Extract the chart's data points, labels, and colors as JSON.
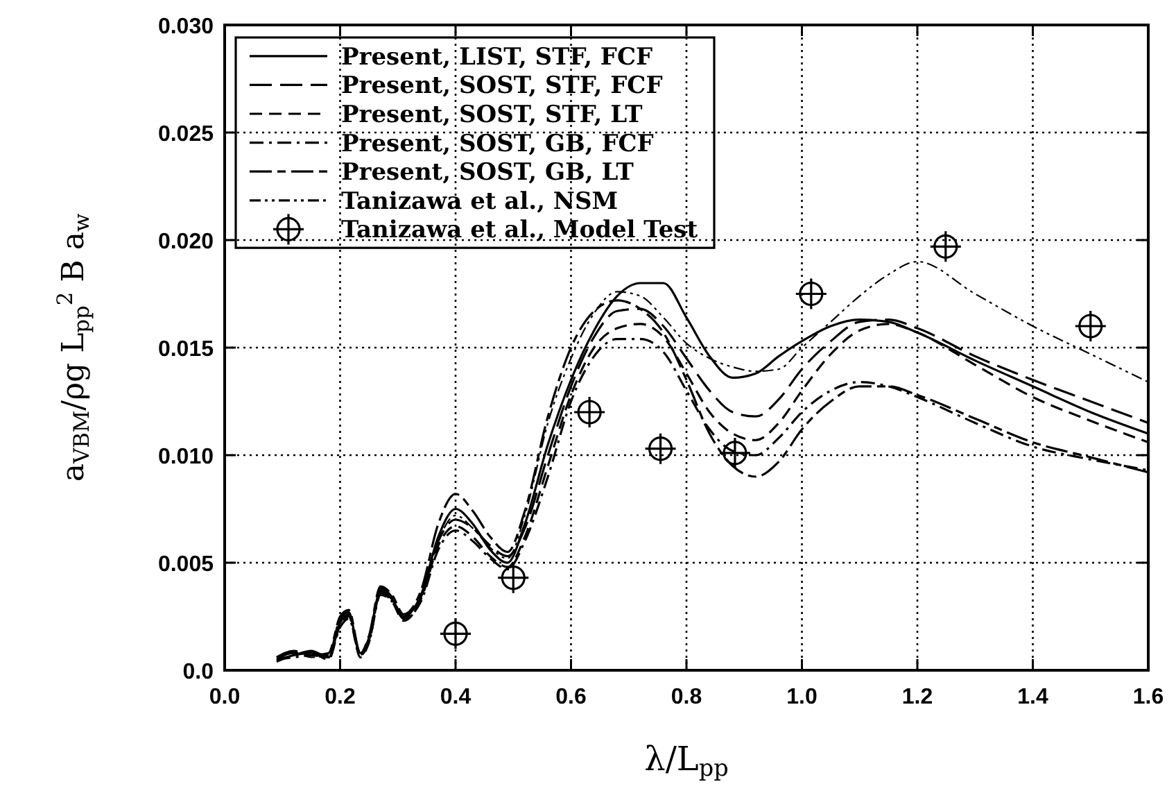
{
  "chart_data": {
    "type": "line",
    "xlabel": "λ/L$_{pp}$",
    "ylabel": "a$_{VBM}$/ρg L$_{pp}$$^{2}$ B a$_{w}$",
    "xlim": [
      0,
      1.6
    ],
    "ylim": [
      0,
      0.03
    ],
    "xticks": [
      {
        "value": 0,
        "label": "0.0"
      },
      {
        "value": 0.2,
        "label": "0.2"
      },
      {
        "value": 0.4,
        "label": "0.4"
      },
      {
        "value": 0.6,
        "label": "0.6"
      },
      {
        "value": 0.8,
        "label": "0.8"
      },
      {
        "value": 1,
        "label": "1.0"
      },
      {
        "value": 1.2,
        "label": "1.2"
      },
      {
        "value": 1.4,
        "label": "1.4"
      },
      {
        "value": 1.6,
        "label": "1.6"
      }
    ],
    "yticks": [
      {
        "value": 0,
        "label": "0.0"
      },
      {
        "value": 0.005,
        "label": "0.005"
      },
      {
        "value": 0.01,
        "label": "0.010"
      },
      {
        "value": 0.015,
        "label": "0.015"
      },
      {
        "value": 0.02,
        "label": "0.020"
      },
      {
        "value": 0.025,
        "label": "0.025"
      },
      {
        "value": 0.03,
        "label": "0.030"
      }
    ],
    "grid": true,
    "legend": "top left",
    "series": [
      {
        "name": "Present, LIST, STF, FCF",
        "color": "#000000",
        "line_style": "solid",
        "x": [
          0.09,
          0.12,
          0.15,
          0.18,
          0.2,
          0.215,
          0.235,
          0.25,
          0.27,
          0.29,
          0.31,
          0.34,
          0.37,
          0.4,
          0.43,
          0.46,
          0.49,
          0.52,
          0.56,
          0.6,
          0.64,
          0.68,
          0.72,
          0.76,
          0.8,
          0.84,
          0.88,
          0.92,
          0.96,
          1.0,
          1.05,
          1.1,
          1.15,
          1.2,
          1.3,
          1.4,
          1.5,
          1.6
        ],
        "values": [
          0.0005,
          0.0007,
          0.0009,
          0.0006,
          0.0022,
          0.0026,
          0.0008,
          0.0015,
          0.0037,
          0.0033,
          0.0025,
          0.0035,
          0.0062,
          0.0075,
          0.0068,
          0.0056,
          0.005,
          0.0068,
          0.0105,
          0.0135,
          0.0158,
          0.0174,
          0.018,
          0.018,
          0.0164,
          0.0146,
          0.0136,
          0.0138,
          0.0146,
          0.0153,
          0.016,
          0.0163,
          0.0162,
          0.0157,
          0.0144,
          0.0132,
          0.012,
          0.011
        ]
      },
      {
        "name": "Present, SOST, STF, FCF",
        "color": "#000000",
        "line_style": "longdash",
        "x": [
          0.09,
          0.12,
          0.15,
          0.18,
          0.2,
          0.215,
          0.235,
          0.25,
          0.27,
          0.29,
          0.31,
          0.34,
          0.37,
          0.4,
          0.43,
          0.46,
          0.49,
          0.52,
          0.56,
          0.6,
          0.64,
          0.68,
          0.72,
          0.76,
          0.8,
          0.84,
          0.88,
          0.92,
          0.96,
          1.0,
          1.05,
          1.1,
          1.15,
          1.2,
          1.3,
          1.4,
          1.5,
          1.6
        ],
        "values": [
          0.0006,
          0.0008,
          0.0008,
          0.0007,
          0.0024,
          0.0027,
          0.0007,
          0.0014,
          0.0038,
          0.0034,
          0.0024,
          0.0034,
          0.006,
          0.007,
          0.0066,
          0.0058,
          0.0053,
          0.0066,
          0.01,
          0.0132,
          0.0155,
          0.0167,
          0.0168,
          0.016,
          0.0145,
          0.013,
          0.012,
          0.0118,
          0.0126,
          0.014,
          0.0153,
          0.0162,
          0.0163,
          0.0159,
          0.0146,
          0.0135,
          0.0125,
          0.0115
        ]
      },
      {
        "name": "Present, SOST, STF, LT",
        "color": "#000000",
        "line_style": "dashed",
        "x": [
          0.09,
          0.12,
          0.15,
          0.18,
          0.2,
          0.215,
          0.235,
          0.25,
          0.27,
          0.29,
          0.31,
          0.34,
          0.37,
          0.4,
          0.43,
          0.46,
          0.49,
          0.52,
          0.56,
          0.6,
          0.64,
          0.68,
          0.72,
          0.76,
          0.8,
          0.84,
          0.88,
          0.92,
          0.96,
          1.0,
          1.05,
          1.1,
          1.15,
          1.2,
          1.3,
          1.4,
          1.5,
          1.6
        ],
        "values": [
          0.0004,
          0.0007,
          0.0008,
          0.0005,
          0.0021,
          0.0025,
          0.0006,
          0.0013,
          0.0036,
          0.0032,
          0.0023,
          0.0033,
          0.0058,
          0.0067,
          0.0062,
          0.0053,
          0.0048,
          0.0062,
          0.0095,
          0.0128,
          0.015,
          0.0159,
          0.0161,
          0.0155,
          0.0138,
          0.012,
          0.011,
          0.0107,
          0.0115,
          0.013,
          0.0147,
          0.0158,
          0.0161,
          0.0157,
          0.0142,
          0.0127,
          0.0116,
          0.0106
        ]
      },
      {
        "name": "Present, SOST, GB, FCF",
        "color": "#000000",
        "line_style": "dashdot",
        "x": [
          0.09,
          0.12,
          0.15,
          0.18,
          0.2,
          0.215,
          0.235,
          0.25,
          0.27,
          0.29,
          0.31,
          0.34,
          0.37,
          0.4,
          0.43,
          0.46,
          0.49,
          0.52,
          0.56,
          0.6,
          0.64,
          0.68,
          0.72,
          0.76,
          0.8,
          0.84,
          0.88,
          0.92,
          0.96,
          1.0,
          1.05,
          1.1,
          1.15,
          1.2,
          1.3,
          1.4,
          1.5,
          1.6
        ],
        "values": [
          0.0005,
          0.0006,
          0.0007,
          0.0006,
          0.002,
          0.0024,
          0.0007,
          0.0013,
          0.0035,
          0.0032,
          0.0024,
          0.0032,
          0.0056,
          0.0065,
          0.006,
          0.0052,
          0.0047,
          0.006,
          0.009,
          0.0125,
          0.0146,
          0.0154,
          0.0154,
          0.0148,
          0.013,
          0.0112,
          0.0102,
          0.01,
          0.0108,
          0.012,
          0.013,
          0.0134,
          0.0132,
          0.0127,
          0.0115,
          0.0104,
          0.0098,
          0.0093
        ]
      },
      {
        "name": "Present, SOST, GB, LT",
        "color": "#000000",
        "line_style": "longshort",
        "x": [
          0.09,
          0.12,
          0.15,
          0.18,
          0.2,
          0.215,
          0.235,
          0.25,
          0.27,
          0.29,
          0.31,
          0.34,
          0.37,
          0.4,
          0.43,
          0.46,
          0.49,
          0.52,
          0.56,
          0.6,
          0.64,
          0.68,
          0.72,
          0.76,
          0.8,
          0.84,
          0.88,
          0.92,
          0.96,
          1.0,
          1.05,
          1.1,
          1.15,
          1.2,
          1.3,
          1.4,
          1.5,
          1.6
        ],
        "values": [
          0.0006,
          0.0009,
          0.0007,
          0.0008,
          0.0025,
          0.0028,
          0.0008,
          0.0016,
          0.0039,
          0.0035,
          0.0026,
          0.0037,
          0.0068,
          0.0082,
          0.0074,
          0.0062,
          0.0055,
          0.0074,
          0.0118,
          0.015,
          0.0167,
          0.0172,
          0.0168,
          0.0157,
          0.0135,
          0.011,
          0.0095,
          0.009,
          0.0097,
          0.0112,
          0.0125,
          0.0132,
          0.0132,
          0.0128,
          0.0117,
          0.0106,
          0.0099,
          0.0092
        ]
      },
      {
        "name": "Tanizawa et al., NSM",
        "color": "#000000",
        "line_style": "dashdotdot",
        "x": [
          0.09,
          0.12,
          0.15,
          0.18,
          0.2,
          0.215,
          0.235,
          0.25,
          0.27,
          0.29,
          0.31,
          0.34,
          0.37,
          0.4,
          0.43,
          0.46,
          0.49,
          0.52,
          0.56,
          0.6,
          0.64,
          0.68,
          0.72,
          0.76,
          0.8,
          0.84,
          0.88,
          0.92,
          0.96,
          1.0,
          1.05,
          1.1,
          1.15,
          1.2,
          1.3,
          1.4,
          1.5,
          1.6
        ],
        "values": [
          0.0005,
          0.0008,
          0.0006,
          0.0007,
          0.0023,
          0.0026,
          0.0007,
          0.0015,
          0.0037,
          0.0033,
          0.0025,
          0.0034,
          0.006,
          0.0072,
          0.0066,
          0.0057,
          0.0052,
          0.0072,
          0.0115,
          0.0145,
          0.0166,
          0.0176,
          0.0174,
          0.0164,
          0.0152,
          0.0145,
          0.0141,
          0.0139,
          0.014,
          0.015,
          0.0162,
          0.0174,
          0.0184,
          0.019,
          0.0175,
          0.016,
          0.0147,
          0.0134
        ]
      },
      {
        "name": "Tanizawa et al., Model Test",
        "type": "scatter",
        "marker": "circle",
        "color": "#000000",
        "x": [
          0.4,
          0.5,
          0.632,
          0.755,
          0.884,
          1.016,
          1.249,
          1.5
        ],
        "values": [
          0.0017,
          0.0043,
          0.012,
          0.0103,
          0.0101,
          0.0175,
          0.0197,
          0.016
        ]
      }
    ]
  }
}
